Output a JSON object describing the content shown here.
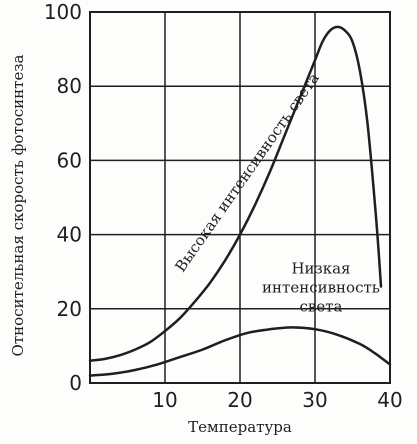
{
  "chart_data": {
    "type": "line",
    "xlabel": "Температура",
    "ylabel": "Относительная скорость фотосинтеза",
    "xlim": [
      0,
      40
    ],
    "ylim": [
      0,
      100
    ],
    "x_ticks": [
      "10",
      "20",
      "30",
      "40"
    ],
    "y_ticks": [
      "0",
      "20",
      "40",
      "60",
      "80",
      "100"
    ],
    "grid": "vertical and horizontal at every tick",
    "colors": {
      "ink": "#1f1f1f",
      "background": "#fdfdfc"
    },
    "series": [
      {
        "name": "Высокая интенсивность света",
        "x": [
          0,
          2,
          4,
          6,
          8,
          10,
          12,
          14,
          16,
          18,
          20,
          22,
          24,
          26,
          28,
          30,
          31,
          32,
          33,
          34,
          35,
          36,
          37,
          38,
          38.5,
          38.8
        ],
        "y": [
          6,
          6.5,
          7.5,
          9,
          11,
          14,
          17.5,
          22,
          27,
          33,
          40,
          48,
          57,
          67,
          77,
          87,
          92,
          95,
          96,
          95,
          92,
          84,
          70,
          48,
          35,
          26
        ]
      },
      {
        "name": "Низкая интенсивность света",
        "x": [
          0,
          3,
          6,
          9,
          12,
          15,
          18,
          21,
          24,
          27,
          30,
          33,
          36,
          38,
          40
        ],
        "y": [
          2,
          2.5,
          3.5,
          5,
          7,
          9,
          11.5,
          13.5,
          14.5,
          15,
          14.5,
          13,
          10.5,
          8,
          5
        ]
      }
    ]
  }
}
